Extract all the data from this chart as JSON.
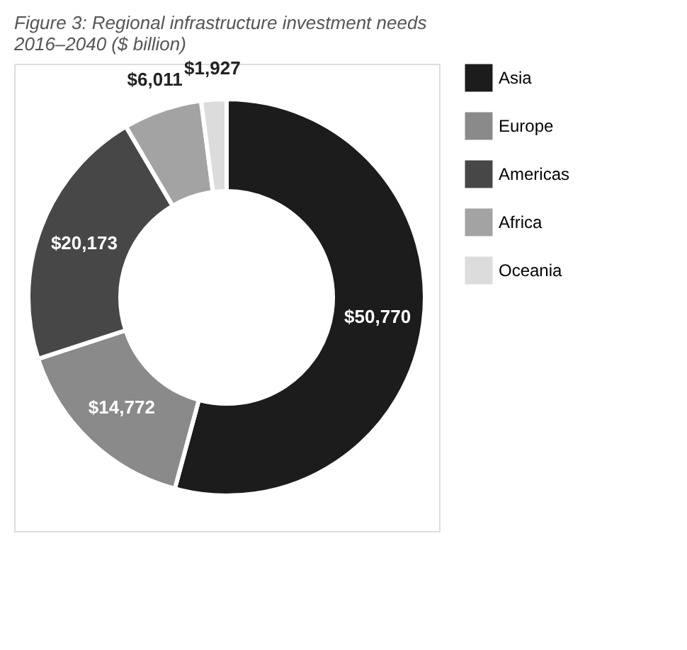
{
  "chart_data": {
    "type": "donut",
    "title": "Figure 3: Regional infrastructure investment needs 2016–2040 ($ billion)",
    "categories": [
      "Asia",
      "Europe",
      "Americas",
      "Africa",
      "Oceania"
    ],
    "values": [
      50770,
      14772,
      20173,
      6011,
      1927
    ],
    "colors": [
      "#1c1c1c",
      "#8a8a8a",
      "#474747",
      "#a3a3a3",
      "#dcdcdc"
    ],
    "value_labels": [
      "$50,770",
      "$14,772",
      "$20,173",
      "$6,011",
      "$1,927"
    ],
    "legend": "right"
  }
}
